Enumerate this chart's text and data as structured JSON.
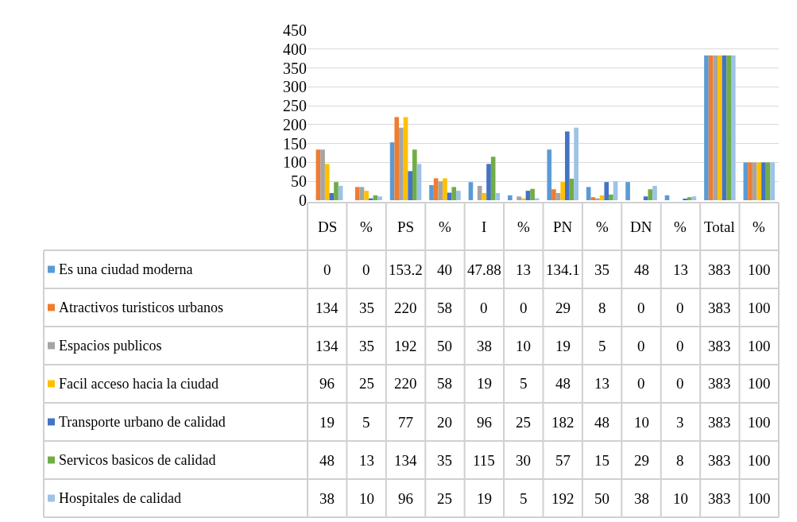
{
  "chart_data": {
    "type": "bar",
    "categories": [
      "DS",
      "%",
      "PS",
      "%",
      "I",
      "%",
      "PN",
      "%",
      "DN",
      "%",
      "Total",
      "%"
    ],
    "series": [
      {
        "name": "Es una ciudad moderna",
        "color": "#5b9bd5",
        "values": [
          0,
          0,
          153.2,
          40,
          47.88,
          13,
          134.1,
          35,
          48,
          13,
          383,
          100
        ]
      },
      {
        "name": "Atractivos turisticos urbanos",
        "color": "#ed7d31",
        "values": [
          134,
          35,
          220,
          58,
          0,
          0,
          29,
          8,
          0,
          0,
          383,
          100
        ]
      },
      {
        "name": "Espacios publicos",
        "color": "#a5a5a5",
        "values": [
          134,
          35,
          192,
          50,
          38,
          10,
          19,
          5,
          0,
          0,
          383,
          100
        ]
      },
      {
        "name": "Facil acceso hacia la ciudad",
        "color": "#ffc000",
        "values": [
          96,
          25,
          220,
          58,
          19,
          5,
          48,
          13,
          0,
          0,
          383,
          100
        ]
      },
      {
        "name": "Transporte urbano de calidad",
        "color": "#4472c4",
        "values": [
          19,
          5,
          77,
          20,
          96,
          25,
          182,
          48,
          10,
          3,
          383,
          100
        ]
      },
      {
        "name": "Servicos basicos de calidad",
        "color": "#70ad47",
        "values": [
          48,
          13,
          134,
          35,
          115,
          30,
          57,
          15,
          29,
          8,
          383,
          100
        ]
      },
      {
        "name": "Hospitales de calidad",
        "color": "#9dc3e6",
        "values": [
          38,
          10,
          96,
          25,
          19,
          5,
          192,
          50,
          38,
          10,
          383,
          100
        ]
      }
    ],
    "ylim": [
      0,
      450
    ],
    "yticks": [
      0,
      50,
      100,
      150,
      200,
      250,
      300,
      350,
      400,
      450
    ],
    "grid": "y",
    "data_labels": true,
    "legend": "bottom left"
  }
}
